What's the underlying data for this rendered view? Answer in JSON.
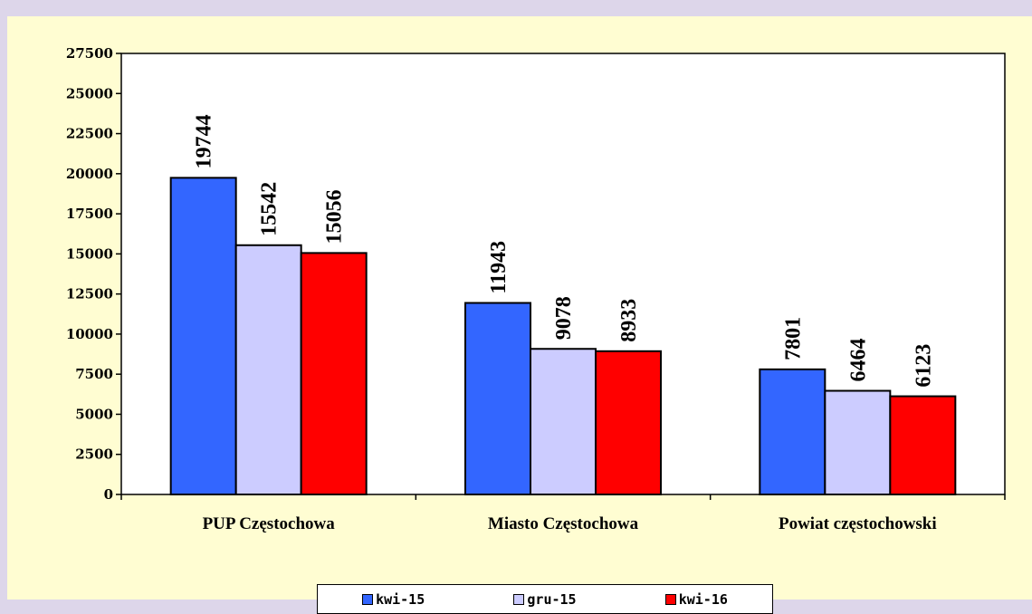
{
  "chart_data": {
    "type": "bar",
    "categories": [
      "PUP Częstochowa",
      "Miasto Częstochowa",
      "Powiat częstochowski"
    ],
    "series": [
      {
        "name": "kwi-15",
        "values": [
          19744,
          11943,
          7801
        ],
        "color": "#3366ff"
      },
      {
        "name": "gru-15",
        "values": [
          15542,
          9078,
          6464
        ],
        "color": "#ccccff"
      },
      {
        "name": "kwi-16",
        "values": [
          15056,
          8933,
          6123
        ],
        "color": "#ff0000"
      }
    ],
    "yticks": [
      0,
      2500,
      5000,
      7500,
      10000,
      12500,
      15000,
      17500,
      20000,
      22500,
      25000,
      27500
    ],
    "ylim": [
      0,
      27500
    ],
    "grid": false,
    "legend_position": "bottom",
    "plot_background": "#ffffff",
    "chart_background": "#fffdd2",
    "page_background": "#ddd6ea"
  }
}
